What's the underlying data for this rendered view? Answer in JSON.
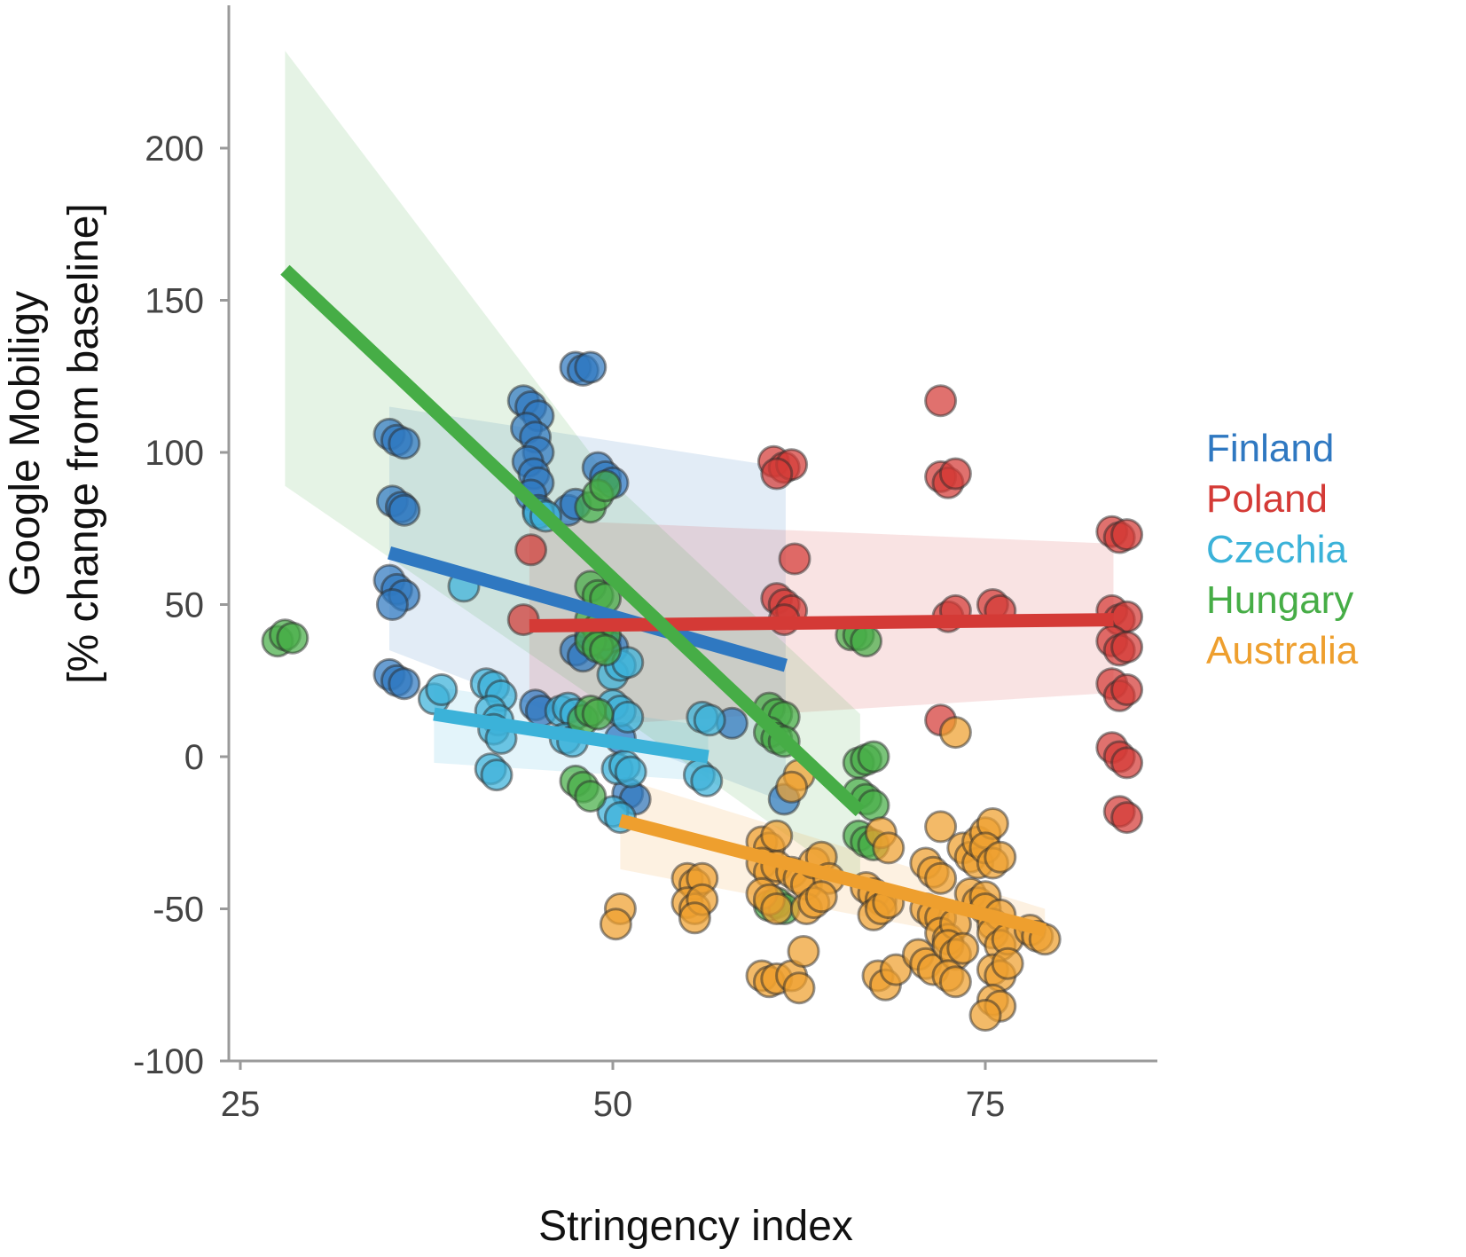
{
  "chart_data": {
    "type": "scatter",
    "xlabel": "Stringency index",
    "ylabel_lines": [
      "Google Mobiligy",
      "[% change from baseline]"
    ],
    "xlim": [
      24,
      87
    ],
    "ylim": [
      -100,
      240
    ],
    "xticks": [
      25,
      50,
      75
    ],
    "yticks": [
      200,
      150,
      100,
      50,
      0,
      -50,
      -100
    ],
    "grid": false,
    "legend_position": "right",
    "series": [
      {
        "name": "Finland",
        "color": "#2f78c1",
        "trend": {
          "x": [
            35,
            61.6
          ],
          "y": [
            67,
            30
          ]
        },
        "band": {
          "x": [
            35,
            61.6
          ],
          "upper": [
            115,
            95
          ],
          "lower": [
            35,
            -15
          ]
        },
        "points": [
          [
            35,
            106
          ],
          [
            35.5,
            104
          ],
          [
            36,
            103
          ],
          [
            35.2,
            84
          ],
          [
            35.8,
            82
          ],
          [
            36,
            81
          ],
          [
            35,
            58
          ],
          [
            35.5,
            55
          ],
          [
            36,
            53
          ],
          [
            35.2,
            50
          ],
          [
            35,
            27
          ],
          [
            35.5,
            25
          ],
          [
            36,
            24
          ],
          [
            44,
            117
          ],
          [
            44.5,
            115
          ],
          [
            45,
            112
          ],
          [
            44.2,
            108
          ],
          [
            44.8,
            105
          ],
          [
            45,
            100
          ],
          [
            44.3,
            97
          ],
          [
            44.7,
            93
          ],
          [
            45,
            90
          ],
          [
            44.5,
            86
          ],
          [
            45,
            81
          ],
          [
            47.5,
            128
          ],
          [
            48,
            127
          ],
          [
            48.5,
            128
          ],
          [
            47,
            81
          ],
          [
            47.5,
            83
          ],
          [
            49,
            95
          ],
          [
            49.5,
            92
          ],
          [
            50,
            90
          ],
          [
            47.5,
            35
          ],
          [
            48,
            33
          ],
          [
            48.5,
            40
          ],
          [
            49.5,
            37
          ],
          [
            50,
            36
          ],
          [
            44.8,
            17
          ],
          [
            45.2,
            15
          ],
          [
            50.5,
            6
          ],
          [
            51,
            -12
          ],
          [
            51.5,
            -14
          ],
          [
            61.5,
            -14
          ],
          [
            58,
            11
          ]
        ]
      },
      {
        "name": "Poland",
        "color": "#d43a36",
        "trend": {
          "x": [
            44.4,
            83.6
          ],
          "y": [
            43,
            45
          ]
        },
        "band": {
          "x": [
            44.4,
            83.6
          ],
          "upper": [
            78,
            70
          ],
          "lower": [
            9,
            21
          ]
        },
        "points": [
          [
            44.5,
            68
          ],
          [
            44,
            45
          ],
          [
            60.8,
            97
          ],
          [
            61.5,
            95
          ],
          [
            62,
            96
          ],
          [
            61,
            93
          ],
          [
            62.2,
            65
          ],
          [
            61,
            52
          ],
          [
            61.5,
            50
          ],
          [
            62,
            48
          ],
          [
            61.5,
            45
          ],
          [
            72,
            117
          ],
          [
            72,
            92
          ],
          [
            72.5,
            90
          ],
          [
            73,
            93
          ],
          [
            72.5,
            46
          ],
          [
            73,
            48
          ],
          [
            72,
            12
          ],
          [
            75.5,
            50
          ],
          [
            76,
            48
          ],
          [
            83.5,
            74
          ],
          [
            84,
            72
          ],
          [
            84.5,
            73
          ],
          [
            83.5,
            48
          ],
          [
            84,
            45
          ],
          [
            84.5,
            46
          ],
          [
            83.5,
            38
          ],
          [
            84,
            35
          ],
          [
            84.5,
            36
          ],
          [
            83.5,
            24
          ],
          [
            84,
            20
          ],
          [
            84.5,
            22
          ],
          [
            83.5,
            3
          ],
          [
            84,
            0
          ],
          [
            84.5,
            -2
          ],
          [
            84,
            -18
          ],
          [
            84.5,
            -20
          ]
        ]
      },
      {
        "name": "Czechia",
        "color": "#3bb2d9",
        "trend": {
          "x": [
            38,
            56.4
          ],
          "y": [
            14,
            0
          ]
        },
        "band": {
          "x": [
            38,
            56.4
          ],
          "upper": [
            23,
            10
          ],
          "lower": [
            -2,
            -8
          ]
        },
        "points": [
          [
            38,
            19
          ],
          [
            38.5,
            22
          ],
          [
            40,
            56
          ],
          [
            41.5,
            24
          ],
          [
            42,
            23
          ],
          [
            42.5,
            20
          ],
          [
            41.8,
            15
          ],
          [
            42.3,
            12
          ],
          [
            42,
            9
          ],
          [
            42.5,
            6
          ],
          [
            41.8,
            -4
          ],
          [
            42.2,
            -6
          ],
          [
            45,
            80
          ],
          [
            45.5,
            79
          ],
          [
            46.5,
            15
          ],
          [
            47,
            16
          ],
          [
            47.5,
            14
          ],
          [
            46.8,
            6
          ],
          [
            47.3,
            5
          ],
          [
            50,
            27
          ],
          [
            50.5,
            30
          ],
          [
            51,
            31
          ],
          [
            50,
            17
          ],
          [
            50.5,
            15
          ],
          [
            51,
            13
          ],
          [
            50.3,
            -4
          ],
          [
            50.8,
            -3
          ],
          [
            51.2,
            -5
          ],
          [
            50,
            -18
          ],
          [
            50.5,
            -20
          ],
          [
            56,
            13
          ],
          [
            56.5,
            12
          ],
          [
            55.8,
            -6
          ],
          [
            56.3,
            -8
          ]
        ]
      },
      {
        "name": "Hungary",
        "color": "#46ad46",
        "trend": {
          "x": [
            28,
            66.6
          ],
          "y": [
            160,
            -18
          ]
        },
        "band": {
          "x": [
            28,
            50,
            66.6
          ],
          "upper": [
            232,
            90,
            14
          ],
          "lower": [
            89,
            15,
            -43
          ]
        },
        "points": [
          [
            27.5,
            38
          ],
          [
            28,
            40
          ],
          [
            28.5,
            39
          ],
          [
            48.5,
            82
          ],
          [
            49,
            86
          ],
          [
            49.5,
            89
          ],
          [
            48.5,
            56
          ],
          [
            49,
            53
          ],
          [
            49.5,
            52
          ],
          [
            48.5,
            45
          ],
          [
            49,
            42
          ],
          [
            49.5,
            40
          ],
          [
            48.5,
            38
          ],
          [
            49,
            36
          ],
          [
            49.5,
            35
          ],
          [
            47.5,
            -8
          ],
          [
            48,
            -10
          ],
          [
            48.5,
            -13
          ],
          [
            48,
            12
          ],
          [
            48.5,
            15
          ],
          [
            49,
            14
          ],
          [
            60.5,
            16
          ],
          [
            61,
            14
          ],
          [
            61.5,
            13
          ],
          [
            60.5,
            8
          ],
          [
            61,
            6
          ],
          [
            61.5,
            5
          ],
          [
            66,
            40
          ],
          [
            66.5,
            40
          ],
          [
            67,
            38
          ],
          [
            66.5,
            -2
          ],
          [
            67,
            -1
          ],
          [
            67.5,
            0
          ],
          [
            66.5,
            -12
          ],
          [
            67,
            -14
          ],
          [
            67.5,
            -16
          ],
          [
            66.5,
            -26
          ],
          [
            67,
            -28
          ],
          [
            67.5,
            -29
          ],
          [
            60.5,
            -49
          ],
          [
            61,
            -48
          ],
          [
            61.5,
            -50
          ]
        ]
      },
      {
        "name": "Australia",
        "color": "#ee9f2e",
        "trend": {
          "x": [
            50.5,
            79
          ],
          "y": [
            -21,
            -57
          ]
        },
        "band": {
          "x": [
            50.5,
            79
          ],
          "upper": [
            -7,
            -50
          ],
          "lower": [
            -37,
            -64
          ]
        },
        "points": [
          [
            50.5,
            -50
          ],
          [
            50.2,
            -55
          ],
          [
            55,
            -40
          ],
          [
            55.5,
            -42
          ],
          [
            56,
            -40
          ],
          [
            55,
            -48
          ],
          [
            55.5,
            -50
          ],
          [
            56,
            -47
          ],
          [
            55.5,
            -53
          ],
          [
            60,
            -28
          ],
          [
            60.5,
            -30
          ],
          [
            61,
            -26
          ],
          [
            60,
            -35
          ],
          [
            60.5,
            -38
          ],
          [
            61,
            -36
          ],
          [
            60,
            -45
          ],
          [
            60.5,
            -47
          ],
          [
            61,
            -50
          ],
          [
            62,
            -38
          ],
          [
            62.5,
            -40
          ],
          [
            63,
            -42
          ],
          [
            63.5,
            -35
          ],
          [
            64,
            -33
          ],
          [
            64.5,
            -40
          ],
          [
            63,
            -50
          ],
          [
            63.5,
            -48
          ],
          [
            64,
            -46
          ],
          [
            60,
            -72
          ],
          [
            60.5,
            -74
          ],
          [
            61,
            -73
          ],
          [
            62,
            -72
          ],
          [
            62.5,
            -76
          ],
          [
            62.5,
            -6
          ],
          [
            62,
            -10
          ],
          [
            62.8,
            -64
          ],
          [
            67,
            -43
          ],
          [
            67.5,
            -45
          ],
          [
            68,
            -47
          ],
          [
            67.5,
            -52
          ],
          [
            68,
            -50
          ],
          [
            68.5,
            -48
          ],
          [
            68,
            -25
          ],
          [
            68.5,
            -30
          ],
          [
            67.8,
            -72
          ],
          [
            68.3,
            -75
          ],
          [
            69,
            -70
          ],
          [
            70.5,
            -65
          ],
          [
            71,
            -68
          ],
          [
            71.5,
            -70
          ],
          [
            71,
            -35
          ],
          [
            71.5,
            -38
          ],
          [
            72,
            -40
          ],
          [
            71,
            -50
          ],
          [
            71.5,
            -52
          ],
          [
            72,
            -53
          ],
          [
            72,
            -58
          ],
          [
            72.5,
            -60
          ],
          [
            73,
            -55
          ],
          [
            72.5,
            -62
          ],
          [
            73,
            -65
          ],
          [
            73.5,
            -63
          ],
          [
            72.5,
            -72
          ],
          [
            73,
            -74
          ],
          [
            72,
            -23
          ],
          [
            73,
            8
          ],
          [
            73.5,
            -30
          ],
          [
            74,
            -33
          ],
          [
            74.5,
            -35
          ],
          [
            74,
            -45
          ],
          [
            74.5,
            -48
          ],
          [
            75,
            -46
          ],
          [
            74.5,
            -28
          ],
          [
            75,
            -25
          ],
          [
            75.5,
            -22
          ],
          [
            75,
            -30
          ],
          [
            75.5,
            -35
          ],
          [
            76,
            -33
          ],
          [
            75,
            -50
          ],
          [
            75.5,
            -55
          ],
          [
            76,
            -52
          ],
          [
            75.5,
            -58
          ],
          [
            76,
            -62
          ],
          [
            76.5,
            -60
          ],
          [
            75.5,
            -70
          ],
          [
            76,
            -72
          ],
          [
            76.5,
            -68
          ],
          [
            75.5,
            -80
          ],
          [
            76,
            -82
          ],
          [
            75,
            -85
          ],
          [
            78,
            -57
          ],
          [
            78.5,
            -59
          ],
          [
            79,
            -60
          ]
        ]
      }
    ]
  }
}
